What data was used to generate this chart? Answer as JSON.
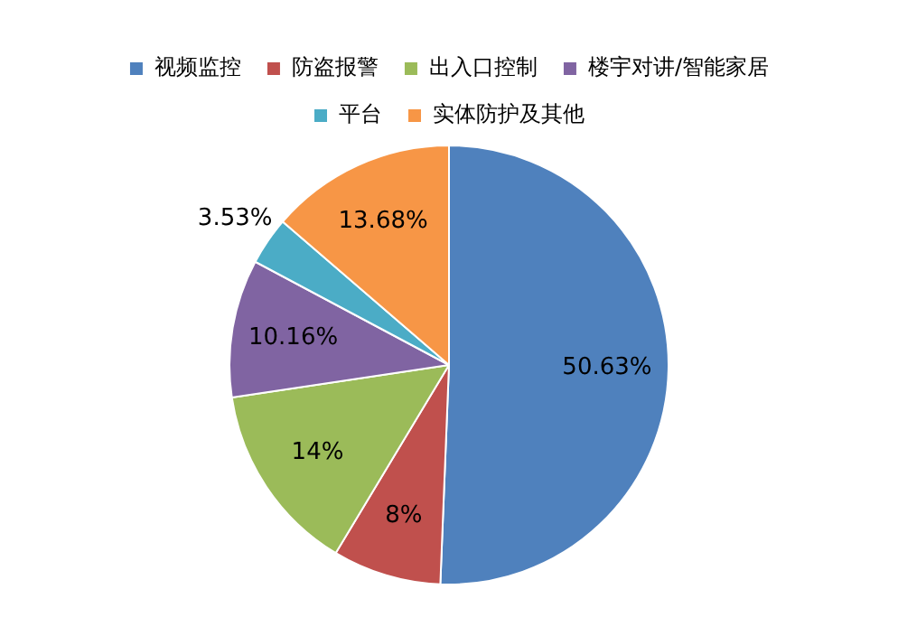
{
  "chart_data": {
    "type": "pie",
    "categories": [
      "视频监控",
      "防盗报警",
      "出入口控制",
      "楼宇对讲/智能家居",
      "平台",
      "实体防护及其他"
    ],
    "values": [
      50.63,
      8,
      14,
      10.16,
      3.53,
      13.68
    ],
    "colors": [
      "#4f81bd",
      "#c0504d",
      "#9bbb59",
      "#8064a2",
      "#4bacc6",
      "#f79646"
    ],
    "value_labels": [
      "50.63%",
      "8%",
      "14%",
      "10.16%",
      "3.53%",
      "13.68%"
    ],
    "legend": "top"
  }
}
